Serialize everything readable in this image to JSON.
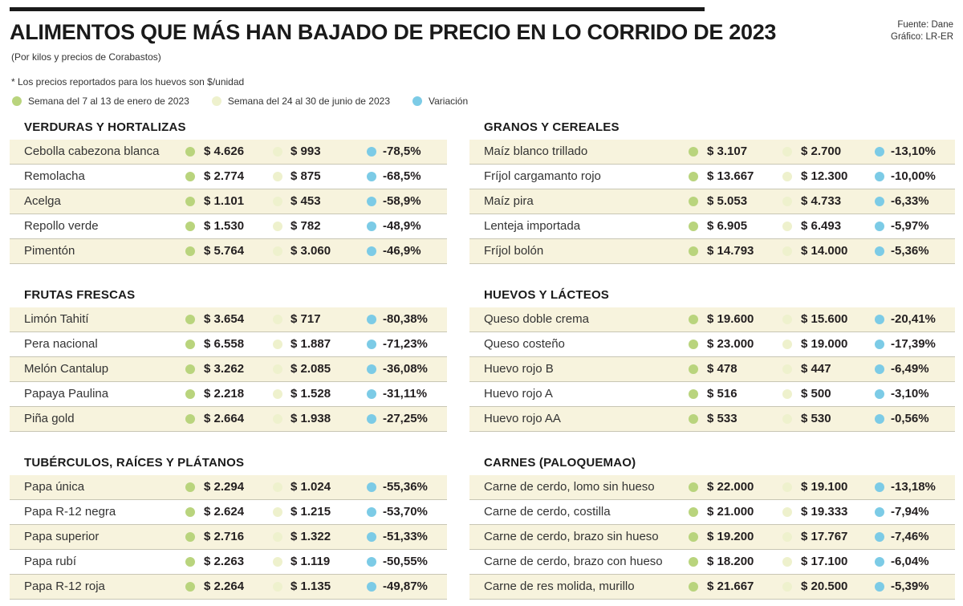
{
  "colors": {
    "week1": "#b9d47d",
    "week2": "#eef1cd",
    "variation": "#7ccbe6",
    "row_shade": "#f7f3dd"
  },
  "header": {
    "title": "ALIMENTOS QUE MÁS HAN BAJADO DE PRECIO EN LO CORRIDO DE 2023",
    "subtitle": "(Por kilos y precios de Corabastos)",
    "note": "* Los precios reportados para los huevos son $/unidad",
    "source_line1": "Fuente: Dane",
    "source_line2": "Gráfico: LR-ER"
  },
  "legend": {
    "week1": "Semana del 7 al 13 de enero de 2023",
    "week2": "Semana del 24 al 30 de junio de 2023",
    "variation": "Variación"
  },
  "chart_data": {
    "type": "table",
    "columns": [
      "Semana del 7 al 13 de enero de 2023",
      "Semana del 24 al 30 de junio de 2023",
      "Variación"
    ],
    "sections": [
      {
        "title": "VERDURAS Y HORTALIZAS",
        "rows": [
          {
            "name": "Cebolla cabezona blanca",
            "week1": "$ 4.626",
            "week2": "$ 993",
            "variation": "-78,5%"
          },
          {
            "name": "Remolacha",
            "week1": "$ 2.774",
            "week2": "$ 875",
            "variation": "-68,5%"
          },
          {
            "name": "Acelga",
            "week1": "$ 1.101",
            "week2": "$ 453",
            "variation": "-58,9%"
          },
          {
            "name": "Repollo verde",
            "week1": "$ 1.530",
            "week2": "$ 782",
            "variation": "-48,9%"
          },
          {
            "name": "Pimentón",
            "week1": "$ 5.764",
            "week2": "$ 3.060",
            "variation": "-46,9%"
          }
        ]
      },
      {
        "title": "GRANOS Y CEREALES",
        "rows": [
          {
            "name": "Maíz blanco trillado",
            "week1": "$ 3.107",
            "week2": "$ 2.700",
            "variation": "-13,10%"
          },
          {
            "name": "Fríjol cargamanto rojo",
            "week1": "$ 13.667",
            "week2": "$ 12.300",
            "variation": "-10,00%"
          },
          {
            "name": "Maíz pira",
            "week1": "$ 5.053",
            "week2": "$ 4.733",
            "variation": "-6,33%"
          },
          {
            "name": "Lenteja importada",
            "week1": "$ 6.905",
            "week2": "$ 6.493",
            "variation": "-5,97%"
          },
          {
            "name": "Fríjol bolón",
            "week1": "$ 14.793",
            "week2": "$ 14.000",
            "variation": "-5,36%"
          }
        ]
      },
      {
        "title": "FRUTAS FRESCAS",
        "rows": [
          {
            "name": "Limón Tahití",
            "week1": "$ 3.654",
            "week2": "$ 717",
            "variation": "-80,38%"
          },
          {
            "name": "Pera nacional",
            "week1": "$ 6.558",
            "week2": "$ 1.887",
            "variation": "-71,23%"
          },
          {
            "name": "Melón Cantalup",
            "week1": "$ 3.262",
            "week2": "$ 2.085",
            "variation": "-36,08%"
          },
          {
            "name": "Papaya Paulina",
            "week1": "$ 2.218",
            "week2": "$ 1.528",
            "variation": "-31,11%"
          },
          {
            "name": "Piña gold",
            "week1": "$ 2.664",
            "week2": "$ 1.938",
            "variation": "-27,25%"
          }
        ]
      },
      {
        "title": "HUEVOS Y LÁCTEOS",
        "rows": [
          {
            "name": "Queso doble crema",
            "week1": "$ 19.600",
            "week2": "$ 15.600",
            "variation": "-20,41%"
          },
          {
            "name": "Queso costeño",
            "week1": "$ 23.000",
            "week2": "$ 19.000",
            "variation": "-17,39%"
          },
          {
            "name": "Huevo rojo B",
            "week1": "$ 478",
            "week2": "$ 447",
            "variation": "-6,49%"
          },
          {
            "name": "Huevo rojo A",
            "week1": "$ 516",
            "week2": "$ 500",
            "variation": "-3,10%"
          },
          {
            "name": "Huevo rojo AA",
            "week1": "$ 533",
            "week2": "$ 530",
            "variation": "-0,56%"
          }
        ]
      },
      {
        "title": "TUBÉRCULOS, RAÍCES Y PLÁTANOS",
        "rows": [
          {
            "name": "Papa única",
            "week1": "$ 2.294",
            "week2": "$ 1.024",
            "variation": "-55,36%"
          },
          {
            "name": "Papa R-12 negra",
            "week1": "$ 2.624",
            "week2": "$ 1.215",
            "variation": "-53,70%"
          },
          {
            "name": "Papa superior",
            "week1": "$ 2.716",
            "week2": "$ 1.322",
            "variation": "-51,33%"
          },
          {
            "name": "Papa rubí",
            "week1": "$ 2.263",
            "week2": "$ 1.119",
            "variation": "-50,55%"
          },
          {
            "name": "Papa R-12 roja",
            "week1": "$ 2.264",
            "week2": "$ 1.135",
            "variation": "-49,87%"
          }
        ]
      },
      {
        "title": "CARNES (PALOQUEMAO)",
        "rows": [
          {
            "name": "Carne de cerdo, lomo sin hueso",
            "week1": "$ 22.000",
            "week2": "$ 19.100",
            "variation": "-13,18%"
          },
          {
            "name": "Carne de cerdo, costilla",
            "week1": "$ 21.000",
            "week2": "$ 19.333",
            "variation": "-7,94%"
          },
          {
            "name": "Carne de cerdo, brazo sin hueso",
            "week1": "$ 19.200",
            "week2": "$ 17.767",
            "variation": "-7,46%"
          },
          {
            "name": "Carne de cerdo, brazo con hueso",
            "week1": "$ 18.200",
            "week2": "$ 17.100",
            "variation": "-6,04%"
          },
          {
            "name": "Carne de res molida, murillo",
            "week1": "$ 21.667",
            "week2": "$ 20.500",
            "variation": "-5,39%"
          }
        ]
      }
    ]
  }
}
